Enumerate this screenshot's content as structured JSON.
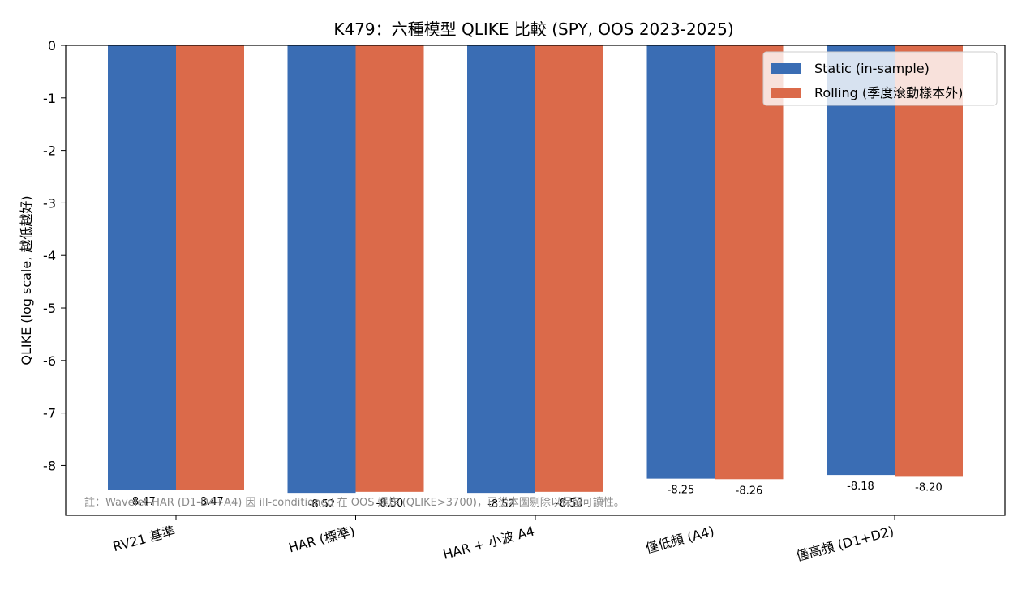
{
  "chart_data": {
    "type": "bar",
    "title": "K479：六種模型 QLIKE 比較 (SPY, OOS 2023-2025)",
    "xlabel": "",
    "ylabel": "QLIKE (log scale, 越低越好)",
    "ylim": [
      -8.95,
      0
    ],
    "yticks": [
      "0",
      "-1",
      "-2",
      "-3",
      "-4",
      "-5",
      "-6",
      "-7",
      "-8"
    ],
    "categories": [
      "RV21 基準",
      "HAR (標準)",
      "HAR + 小波 A4",
      "僅低頻 (A4)",
      "僅高頻 (D1+D2)"
    ],
    "series": [
      {
        "name": "Static (in-sample)",
        "color": "#3a6db4",
        "values": [
          -8.47,
          -8.52,
          -8.52,
          -8.25,
          -8.18
        ],
        "labels": [
          "-8.47",
          "-8.52",
          "-8.52",
          "-8.25",
          "-8.18"
        ]
      },
      {
        "name": "Rolling (季度滾動樣本外)",
        "color": "#db6a4a",
        "values": [
          -8.47,
          -8.5,
          -8.5,
          -8.26,
          -8.2
        ],
        "labels": [
          "-8.47",
          "-8.50",
          "-8.50",
          "-8.26",
          "-8.20"
        ]
      }
    ],
    "legend": "top-right",
    "grid": false,
    "annotation": "註：Wavelet-HAR (D1-D4+A4) 因 ill-conditioned 在 OOS 爆炸 (QLIKE>3700)，已從本圖剔除以保留可讀性。"
  }
}
